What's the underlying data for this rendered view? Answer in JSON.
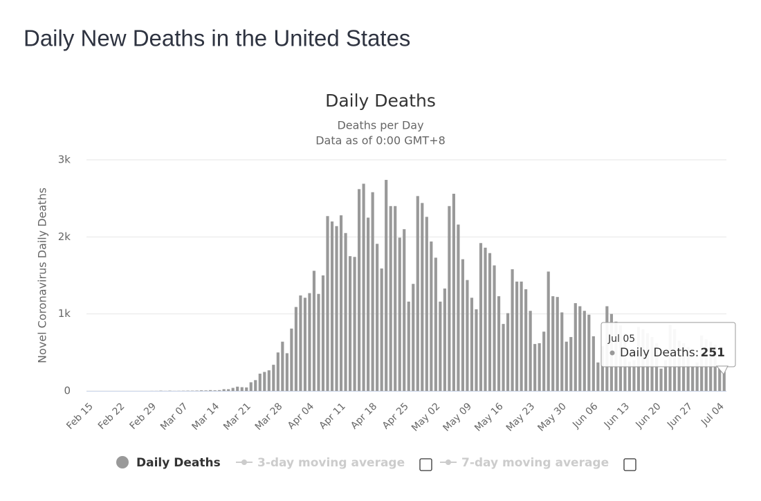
{
  "header": {
    "title": "Daily New Deaths in the United States"
  },
  "chart_data": {
    "type": "bar",
    "title": "Daily Deaths",
    "subtitle": [
      "Deaths per Day",
      "Data as of 0:00 GMT+8"
    ],
    "y_label": "Novel Coronavirus Daily Deaths",
    "categories": [
      "Feb 15",
      "Feb 16",
      "Feb 17",
      "Feb 18",
      "Feb 19",
      "Feb 20",
      "Feb 21",
      "Feb 22",
      "Feb 23",
      "Feb 24",
      "Feb 25",
      "Feb 26",
      "Feb 27",
      "Feb 28",
      "Feb 29",
      "Mar 01",
      "Mar 02",
      "Mar 03",
      "Mar 04",
      "Mar 05",
      "Mar 06",
      "Mar 07",
      "Mar 08",
      "Mar 09",
      "Mar 10",
      "Mar 11",
      "Mar 12",
      "Mar 13",
      "Mar 14",
      "Mar 15",
      "Mar 16",
      "Mar 17",
      "Mar 18",
      "Mar 19",
      "Mar 20",
      "Mar 21",
      "Mar 22",
      "Mar 23",
      "Mar 24",
      "Mar 25",
      "Mar 26",
      "Mar 27",
      "Mar 28",
      "Mar 29",
      "Mar 30",
      "Mar 31",
      "Apr 01",
      "Apr 02",
      "Apr 03",
      "Apr 04",
      "Apr 05",
      "Apr 06",
      "Apr 07",
      "Apr 08",
      "Apr 09",
      "Apr 10",
      "Apr 11",
      "Apr 12",
      "Apr 13",
      "Apr 14",
      "Apr 15",
      "Apr 16",
      "Apr 17",
      "Apr 18",
      "Apr 19",
      "Apr 20",
      "Apr 21",
      "Apr 22",
      "Apr 23",
      "Apr 24",
      "Apr 25",
      "Apr 26",
      "Apr 27",
      "Apr 28",
      "Apr 29",
      "Apr 30",
      "May 01",
      "May 02",
      "May 03",
      "May 04",
      "May 05",
      "May 06",
      "May 07",
      "May 08",
      "May 09",
      "May 10",
      "May 11",
      "May 12",
      "May 13",
      "May 14",
      "May 15",
      "May 16",
      "May 17",
      "May 18",
      "May 19",
      "May 20",
      "May 21",
      "May 22",
      "May 23",
      "May 24",
      "May 25",
      "May 26",
      "May 27",
      "May 28",
      "May 29",
      "May 30",
      "May 31",
      "Jun 01",
      "Jun 02",
      "Jun 03",
      "Jun 04",
      "Jun 05",
      "Jun 06",
      "Jun 07",
      "Jun 08",
      "Jun 09",
      "Jun 10",
      "Jun 11",
      "Jun 12",
      "Jun 13",
      "Jun 14",
      "Jun 15",
      "Jun 16",
      "Jun 17",
      "Jun 18",
      "Jun 19",
      "Jun 20",
      "Jun 21",
      "Jun 22",
      "Jun 23",
      "Jun 24",
      "Jun 25",
      "Jun 26",
      "Jun 27",
      "Jun 28",
      "Jun 29",
      "Jun 30",
      "Jul 01",
      "Jul 02",
      "Jul 03",
      "Jul 04",
      "Jul 05"
    ],
    "series": [
      {
        "name": "Daily Deaths",
        "color": "#999999",
        "values": [
          0,
          0,
          0,
          0,
          0,
          0,
          0,
          0,
          0,
          0,
          0,
          0,
          0,
          0,
          1,
          1,
          4,
          1,
          4,
          1,
          2,
          3,
          4,
          4,
          5,
          8,
          7,
          11,
          8,
          11,
          23,
          23,
          40,
          56,
          49,
          46,
          113,
          141,
          225,
          247,
          268,
          340,
          500,
          640,
          490,
          810,
          1090,
          1240,
          1210,
          1270,
          1560,
          1260,
          1500,
          2270,
          2200,
          2140,
          2280,
          2050,
          1750,
          1740,
          2620,
          2690,
          2250,
          2580,
          1910,
          1590,
          2740,
          2400,
          2400,
          1990,
          2100,
          1160,
          1390,
          2530,
          2440,
          2260,
          1940,
          1730,
          1160,
          1330,
          2400,
          2560,
          2160,
          1710,
          1440,
          1210,
          1060,
          1920,
          1860,
          1790,
          1630,
          1230,
          870,
          1010,
          1580,
          1420,
          1420,
          1320,
          1040,
          610,
          620,
          770,
          1550,
          1230,
          1220,
          1020,
          640,
          700,
          1140,
          1100,
          1040,
          990,
          710,
          370,
          580,
          1100,
          1000,
          900,
          850,
          750,
          380,
          400,
          830,
          800,
          750,
          700,
          620,
          290,
          400,
          860,
          800,
          650,
          620,
          570,
          310,
          370,
          720,
          670,
          640,
          600,
          290,
          251
        ]
      }
    ],
    "legend": [
      {
        "name": "3-day moving average",
        "enabled": false
      },
      {
        "name": "7-day moving average",
        "enabled": false
      }
    ],
    "tooltip_label": "Daily Deaths:",
    "ylim": [
      0,
      3000
    ],
    "yticks": [
      0,
      {
        "value": 1000,
        "label": "1k"
      },
      {
        "value": 2000,
        "label": "2k"
      },
      {
        "value": 3000,
        "label": "3k"
      }
    ],
    "grid": true
  }
}
